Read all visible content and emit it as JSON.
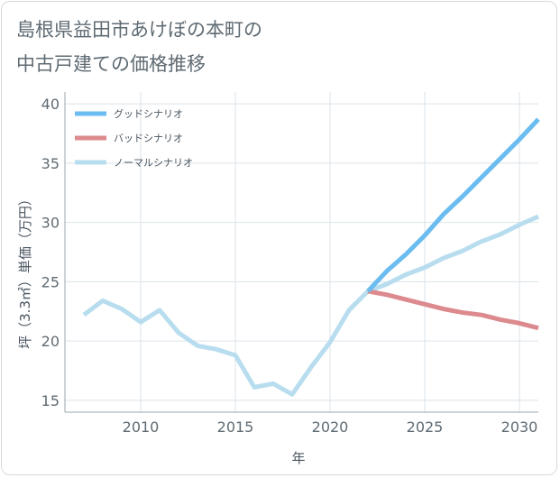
{
  "chart_data": {
    "type": "line",
    "title": "島根県益田市あけぼの本町の\n中古戸建ての価格推移",
    "xlabel": "年",
    "ylabel": "坪（3.3㎡）単価（万円）",
    "xlim": [
      2006,
      2031
    ],
    "ylim": [
      14,
      41
    ],
    "xticks": [
      2010,
      2015,
      2020,
      2025,
      2030
    ],
    "yticks": [
      15,
      20,
      25,
      30,
      35,
      40
    ],
    "grid": true,
    "legend_position": "top-left",
    "series": [
      {
        "name": "グッドシナリオ",
        "color": "#6bbcf0",
        "x": [
          2022,
          2023,
          2024,
          2025,
          2026,
          2027,
          2028,
          2029,
          2030,
          2031
        ],
        "y": [
          24.2,
          25.9,
          27.3,
          28.9,
          30.7,
          32.2,
          33.8,
          35.4,
          37.0,
          38.7
        ]
      },
      {
        "name": "バッドシナリオ",
        "color": "#dc8a8e",
        "x": [
          2022,
          2023,
          2024,
          2025,
          2026,
          2027,
          2028,
          2029,
          2030,
          2031
        ],
        "y": [
          24.2,
          23.9,
          23.5,
          23.1,
          22.7,
          22.4,
          22.2,
          21.8,
          21.5,
          21.1
        ]
      },
      {
        "name": "ノーマルシナリオ",
        "color": "#b8ddef",
        "x": [
          2007,
          2008,
          2009,
          2010,
          2011,
          2012,
          2013,
          2014,
          2015,
          2016,
          2017,
          2018,
          2019,
          2020,
          2021,
          2022,
          2023,
          2024,
          2025,
          2026,
          2027,
          2028,
          2029,
          2030,
          2031
        ],
        "y": [
          22.2,
          23.4,
          22.7,
          21.6,
          22.6,
          20.7,
          19.6,
          19.3,
          18.8,
          16.1,
          16.4,
          15.5,
          17.8,
          19.9,
          22.6,
          24.2,
          24.8,
          25.6,
          26.2,
          27.0,
          27.6,
          28.4,
          29.0,
          29.8,
          30.5
        ]
      }
    ]
  }
}
